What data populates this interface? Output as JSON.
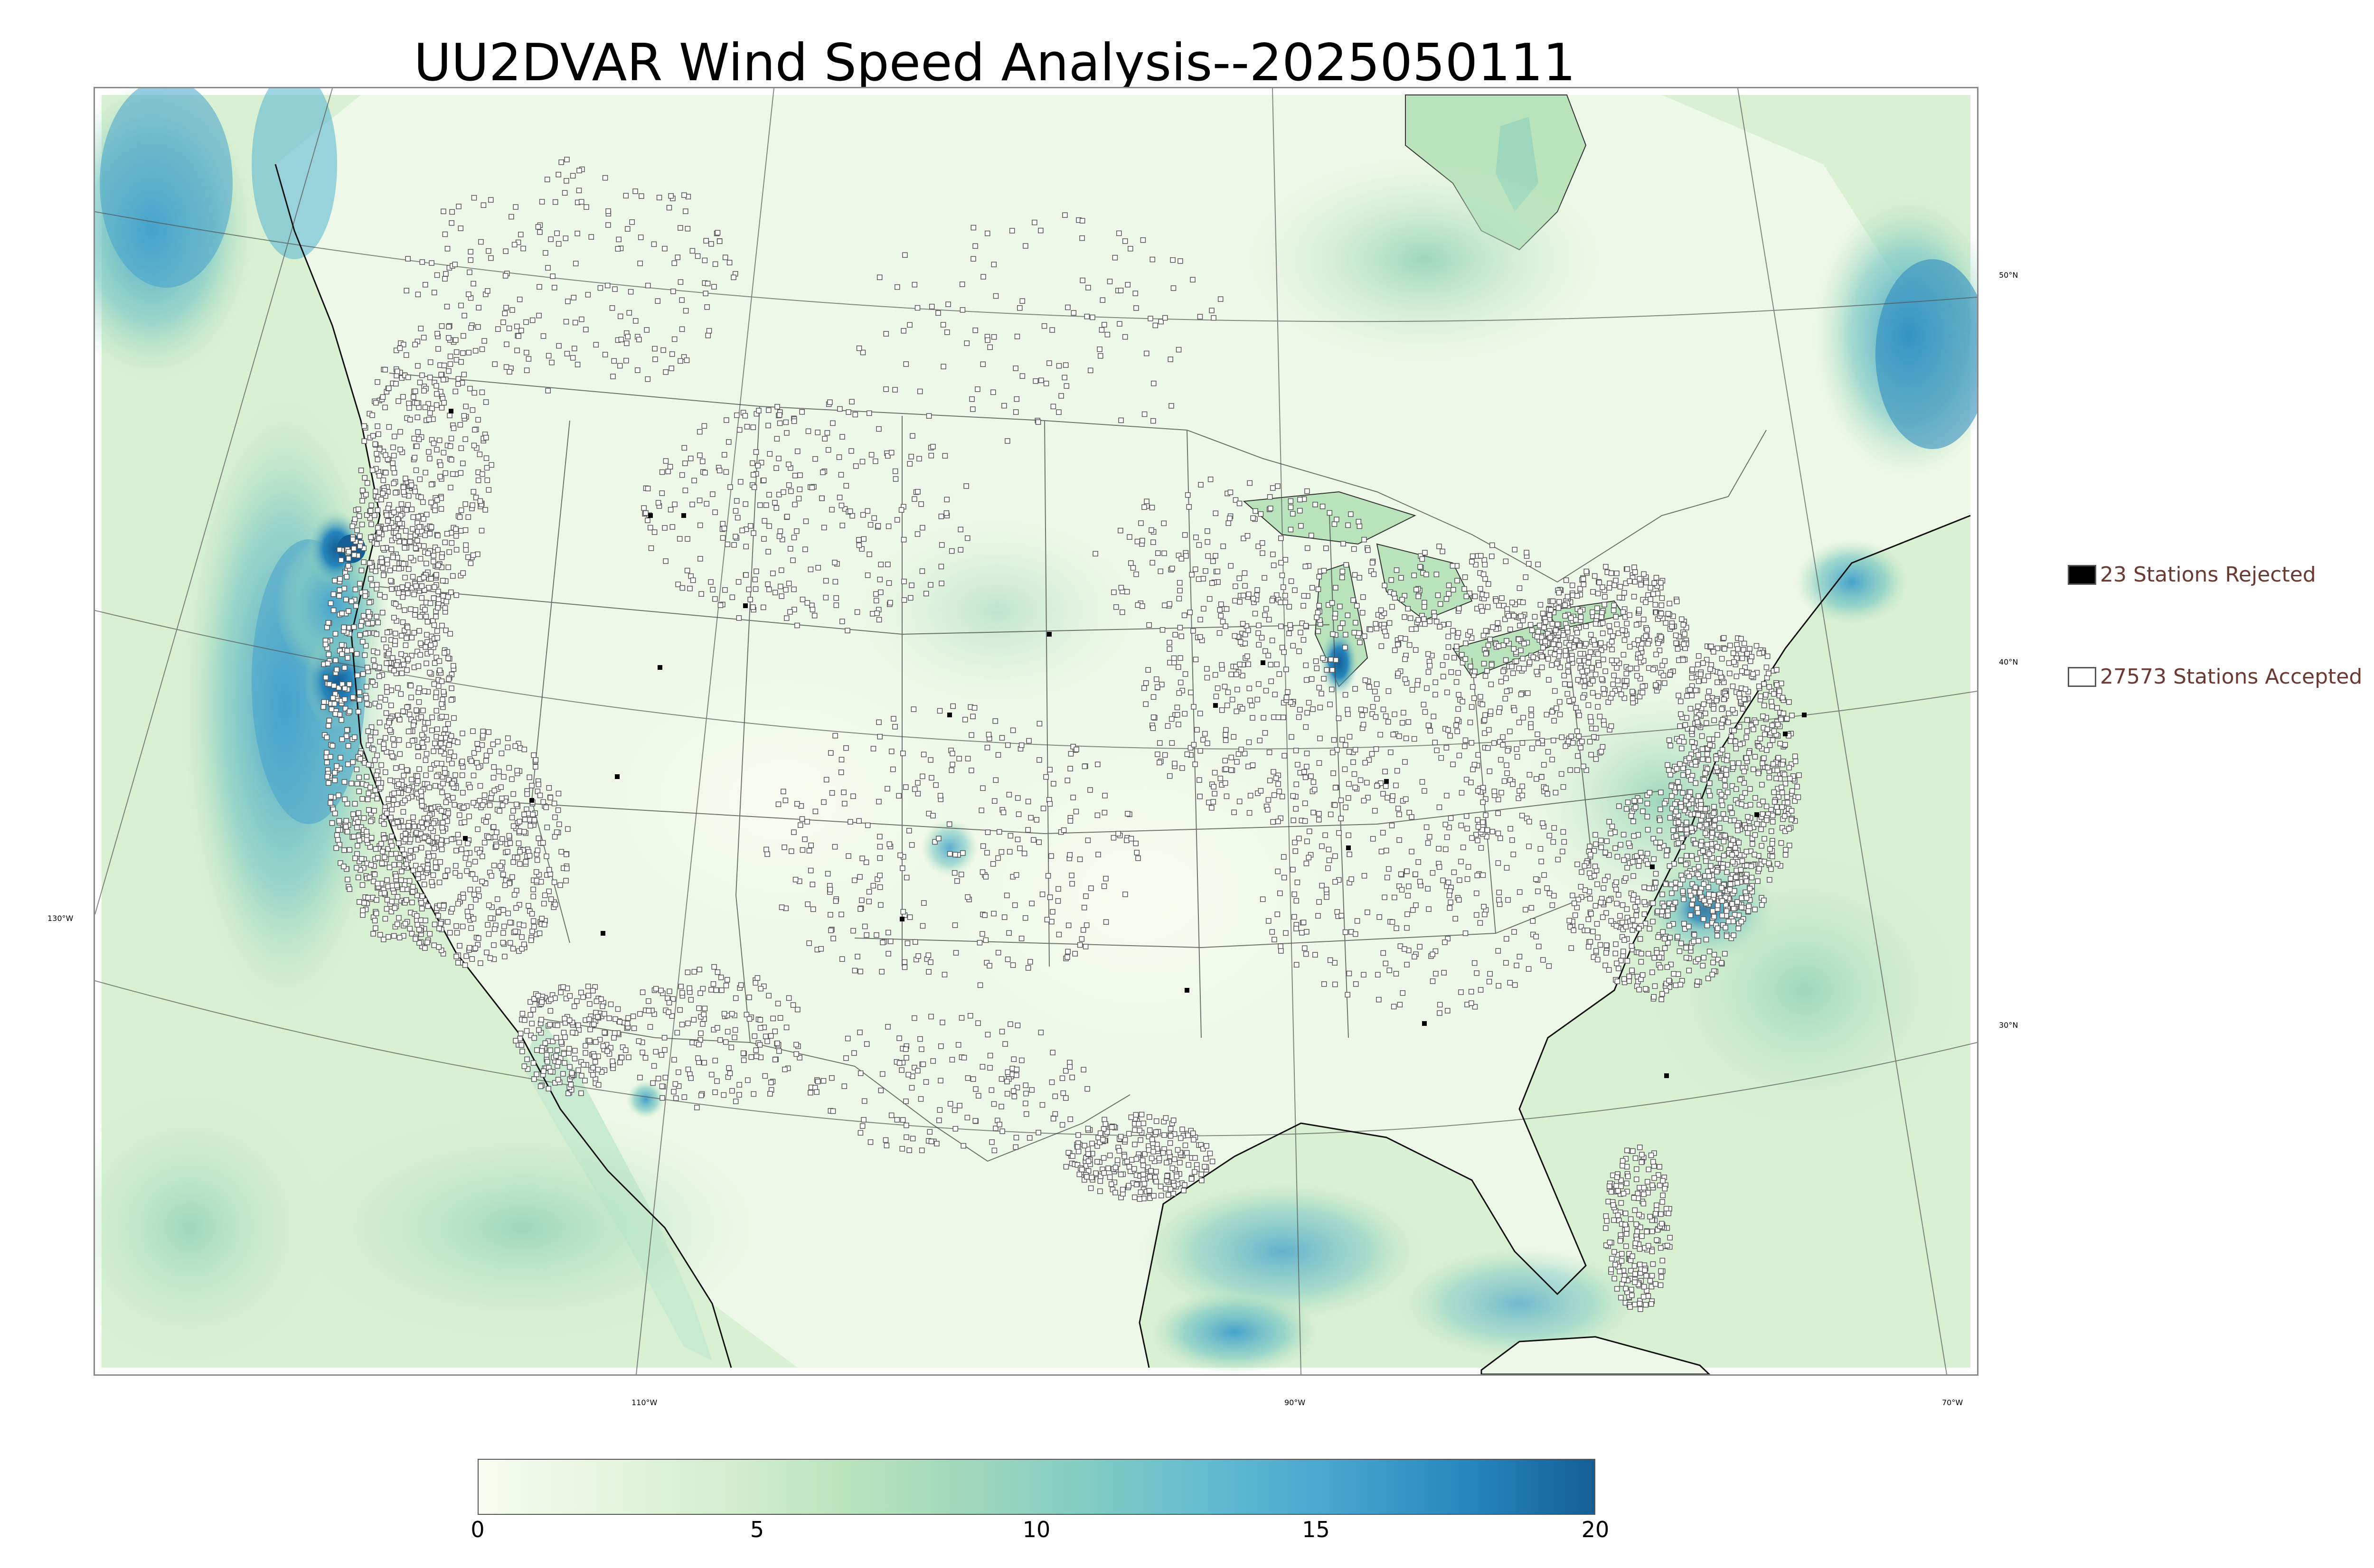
{
  "title": "UU2DVAR Wind Speed Analysis--2025050111",
  "legend": {
    "rejected": {
      "label": "23 Stations Rejected",
      "color": "#000000"
    },
    "accepted": {
      "label": "27573 Stations Accepted",
      "color": "#ffffff"
    },
    "text_color": "#6b3a32"
  },
  "colorbar": {
    "min": 0,
    "max": 20,
    "ticks": [
      "0",
      "5",
      "10",
      "15",
      "20"
    ],
    "tick_values": [
      0,
      5,
      10,
      15,
      20
    ],
    "colormap": "GnBu",
    "colors": [
      "#f7fcf0",
      "#e6f5df",
      "#d3eece",
      "#b9e3bb",
      "#9dd7bc",
      "#7fcbc4",
      "#5fb9d1",
      "#45a2cc",
      "#2686bd",
      "#135e95"
    ]
  },
  "grid_labels": {
    "lat_50": "50°N",
    "lat_40": "40°N",
    "lat_30": "30°N",
    "lon_130": "130°W",
    "lon_110": "110°W",
    "lon_90": "90°W",
    "lon_70": "70°W"
  }
}
